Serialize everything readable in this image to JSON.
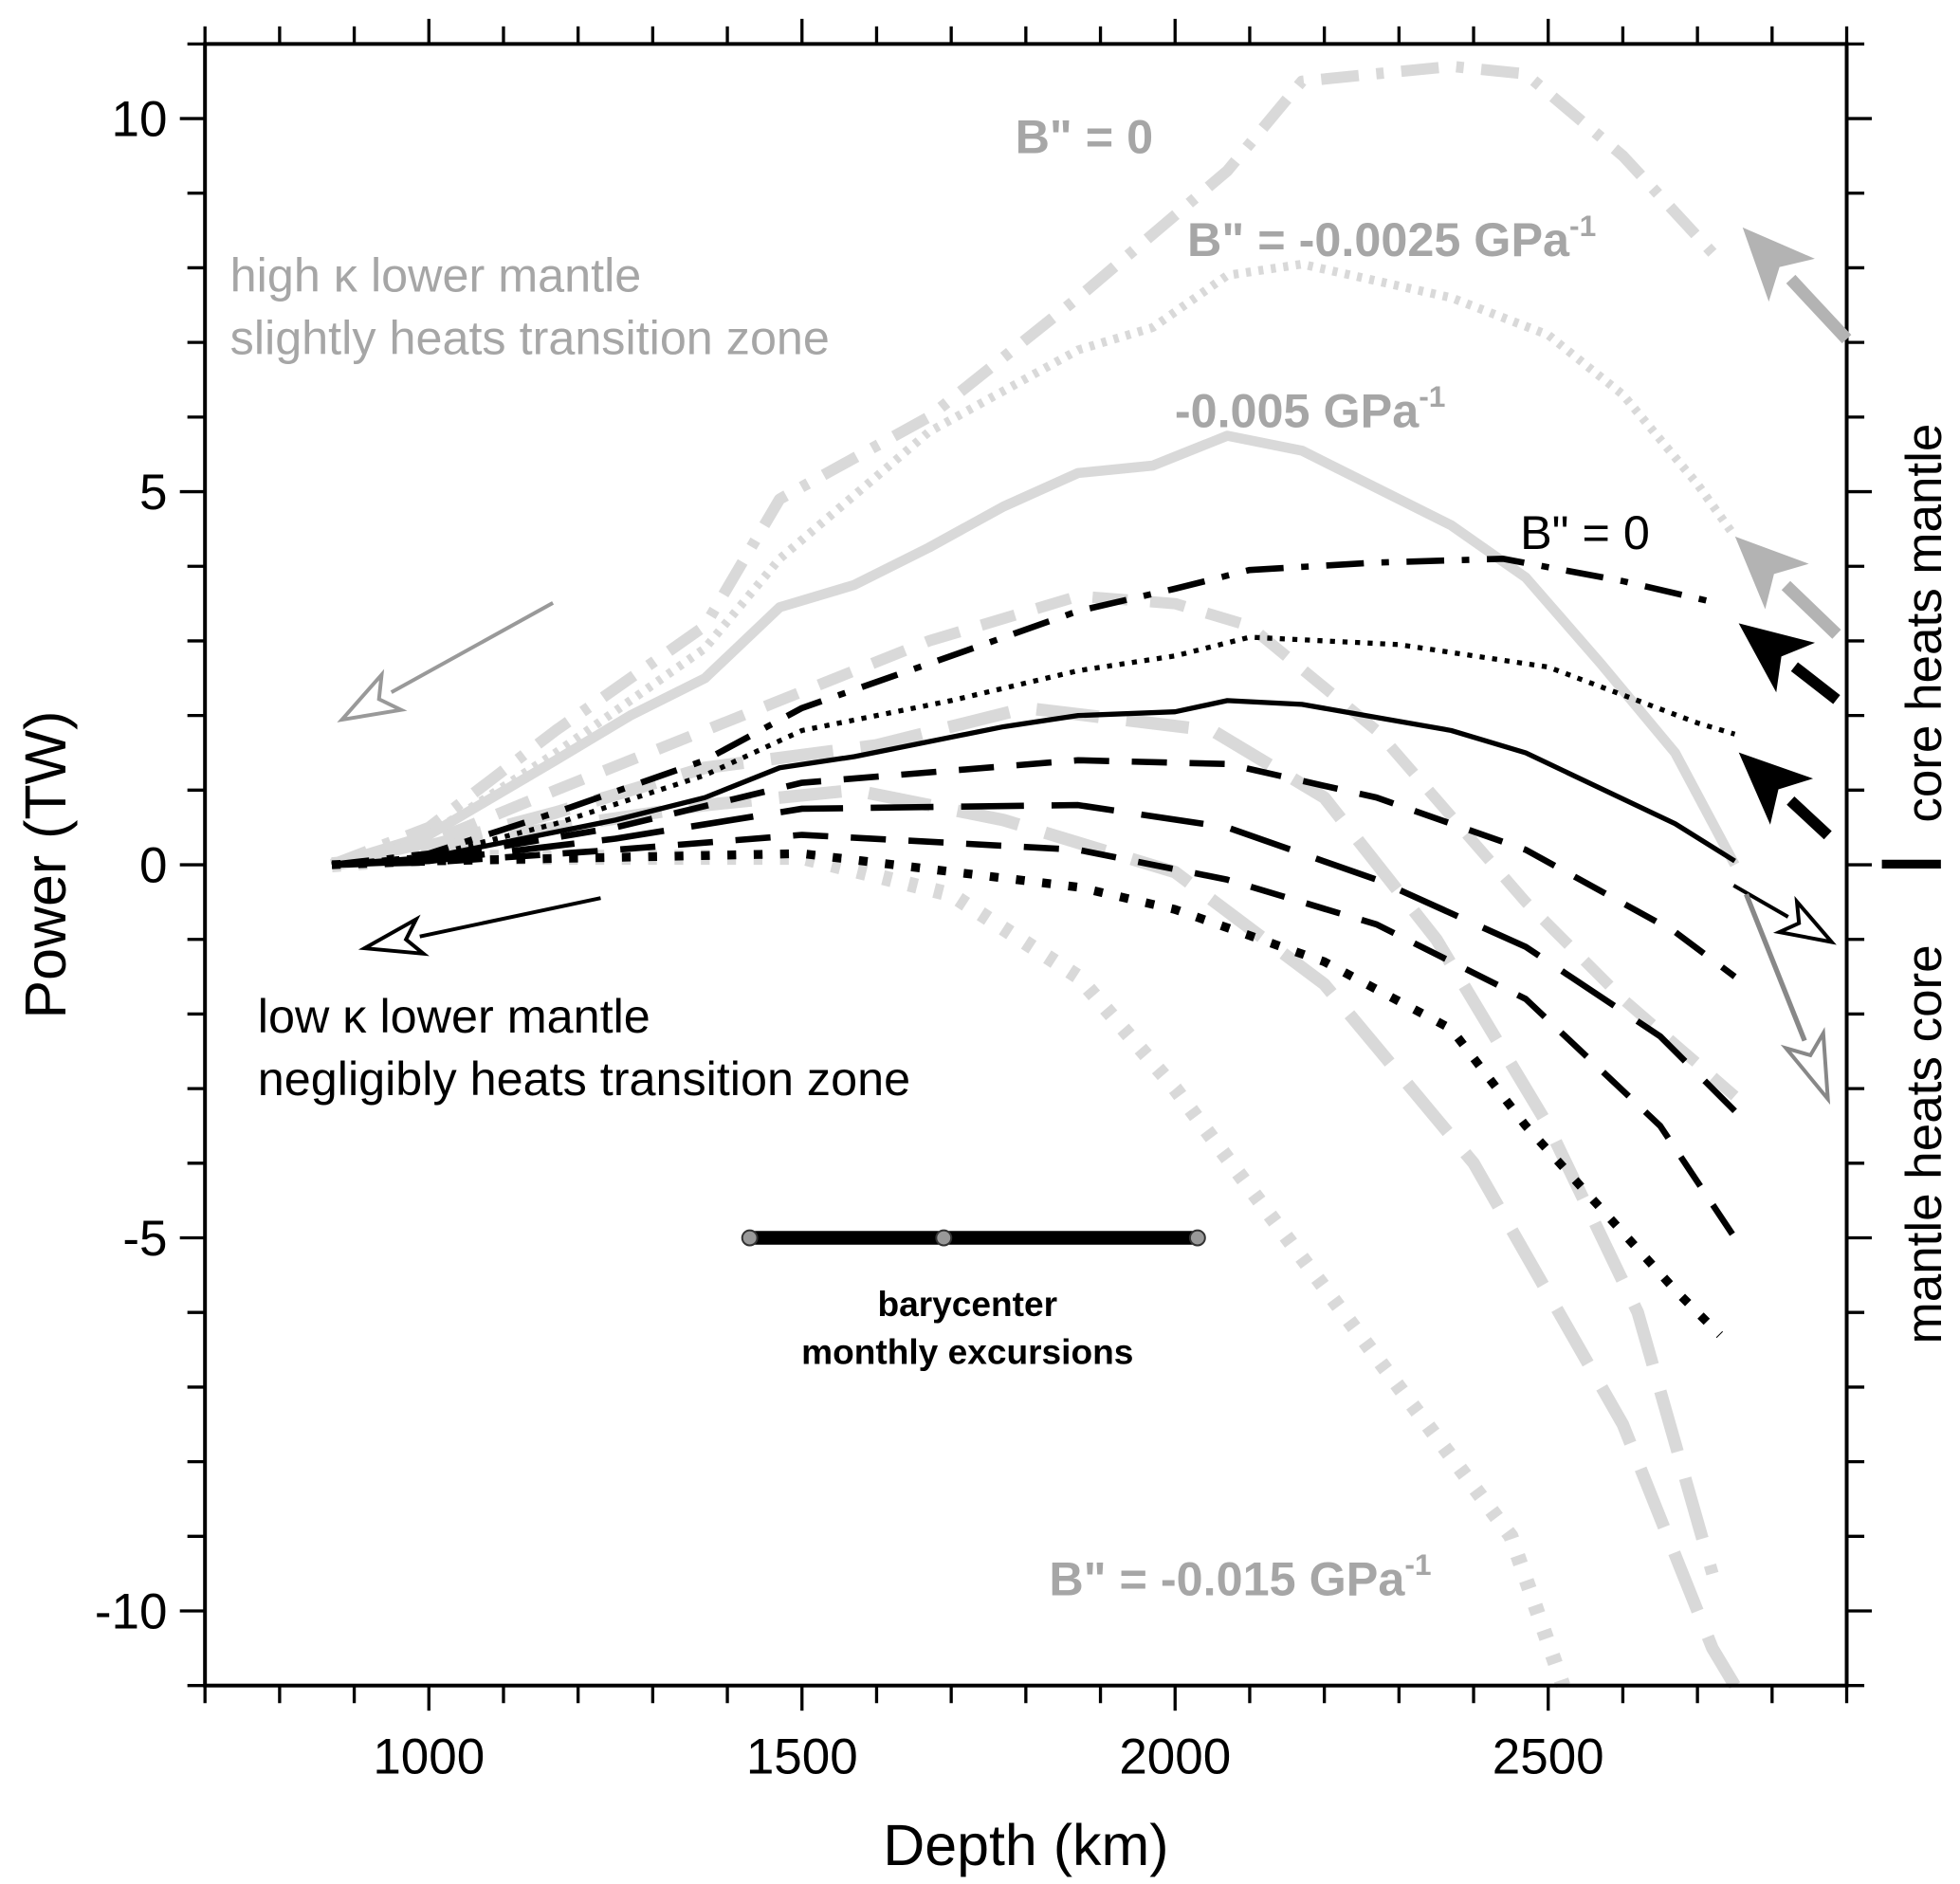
{
  "chart_data": {
    "type": "line",
    "xlabel": "Depth (km)",
    "ylabel": "Power (TW)",
    "xlim": [
      700,
      2900
    ],
    "ylim": [
      -11,
      11
    ],
    "xticks": [
      1000,
      1500,
      2000,
      2500
    ],
    "yticks": [
      10,
      5,
      0,
      -5,
      -10
    ],
    "xtick_labels": [
      "1000",
      "1500",
      "2000",
      "2500"
    ],
    "ytick_labels": [
      "10",
      "5",
      "0",
      "-5",
      "-10"
    ],
    "grid": false,
    "series": [
      {
        "name": "gray B''=0",
        "color": "#d9d9d9",
        "style": "dashdot",
        "x": [
          870,
          1000,
          1170,
          1370,
          1470,
          1670,
          1870,
          2070,
          2170,
          2370,
          2470,
          2600,
          2720
        ],
        "y": [
          0,
          0.5,
          1.8,
          3.2,
          4.9,
          6.0,
          7.6,
          9.3,
          10.5,
          10.7,
          10.6,
          9.5,
          8.2
        ]
      },
      {
        "name": "gray B''=-0.0025",
        "color": "#d9d9d9",
        "style": "dotted",
        "x": [
          870,
          1000,
          1170,
          1370,
          1470,
          1670,
          1870,
          1970,
          2070,
          2170,
          2370,
          2500,
          2600,
          2700,
          2750
        ],
        "y": [
          0,
          0.4,
          1.5,
          2.9,
          4.1,
          5.8,
          6.9,
          7.2,
          7.9,
          8.05,
          7.6,
          7.1,
          6.3,
          5.1,
          4.4
        ]
      },
      {
        "name": "gray B''=-0.005",
        "color": "#d9d9d9",
        "style": "solid",
        "x": [
          870,
          1000,
          1170,
          1270,
          1370,
          1470,
          1570,
          1670,
          1770,
          1870,
          1970,
          2070,
          2170,
          2370,
          2470,
          2570,
          2670,
          2750
        ],
        "y": [
          0,
          0.4,
          1.4,
          2.0,
          2.5,
          3.45,
          3.75,
          4.25,
          4.8,
          5.25,
          5.35,
          5.75,
          5.55,
          4.55,
          3.85,
          2.7,
          1.5,
          0.0
        ]
      },
      {
        "name": "gray B''=-0.0075",
        "color": "#d9d9d9",
        "style": "dashed",
        "x": [
          870,
          1000,
          1170,
          1370,
          1470,
          1670,
          1870,
          2000,
          2100,
          2270,
          2470,
          2600,
          2750
        ],
        "y": [
          0,
          0.3,
          1.0,
          1.8,
          2.2,
          3.0,
          3.6,
          3.5,
          3.2,
          1.8,
          -0.5,
          -1.8,
          -3.1
        ]
      },
      {
        "name": "gray B''=-0.01",
        "color": "#d9d9d9",
        "style": "dashed-long",
        "x": [
          870,
          1000,
          1170,
          1370,
          1600,
          1800,
          2050,
          2200,
          2350,
          2500,
          2620,
          2720
        ],
        "y": [
          0,
          0.25,
          0.7,
          1.3,
          1.6,
          2.1,
          1.8,
          0.9,
          -1.0,
          -3.5,
          -6.0,
          -9.5
        ]
      },
      {
        "name": "gray B''=-0.0125",
        "color": "#d9d9d9",
        "style": "dashed-long",
        "x": [
          870,
          1000,
          1170,
          1370,
          1570,
          1770,
          2000,
          2200,
          2400,
          2600,
          2720,
          2750
        ],
        "y": [
          0,
          0.2,
          0.5,
          0.8,
          1.0,
          0.6,
          -0.1,
          -1.6,
          -4.0,
          -7.5,
          -10.5,
          -11
        ]
      },
      {
        "name": "gray B''=-0.015",
        "color": "#d9d9d9",
        "style": "dotted-heavy",
        "x": [
          870,
          1000,
          1200,
          1500,
          1700,
          1870,
          2000,
          2150,
          2300,
          2450,
          2520
        ],
        "y": [
          0,
          0.1,
          0.1,
          0.1,
          -0.4,
          -1.5,
          -3.0,
          -5.0,
          -7.0,
          -9.0,
          -11
        ]
      },
      {
        "name": "black B''=0",
        "color": "#000000",
        "style": "dashdot",
        "x": [
          870,
          1000,
          1170,
          1370,
          1500,
          1700,
          1870,
          2000,
          2100,
          2270,
          2440,
          2600,
          2730
        ],
        "y": [
          0,
          0.15,
          0.7,
          1.4,
          2.1,
          2.8,
          3.4,
          3.7,
          3.95,
          4.05,
          4.1,
          3.8,
          3.5
        ]
      },
      {
        "name": "black dotted",
        "color": "#000000",
        "style": "dotted",
        "x": [
          870,
          1000,
          1170,
          1370,
          1500,
          1700,
          1870,
          2000,
          2100,
          2300,
          2500,
          2700,
          2750
        ],
        "y": [
          0,
          0.12,
          0.55,
          1.2,
          1.8,
          2.2,
          2.6,
          2.8,
          3.05,
          2.95,
          2.65,
          1.9,
          1.75
        ]
      },
      {
        "name": "black solid",
        "color": "#000000",
        "style": "solid",
        "x": [
          870,
          1000,
          1250,
          1370,
          1470,
          1570,
          1770,
          1870,
          2000,
          2070,
          2170,
          2370,
          2470,
          2670,
          2750
        ],
        "y": [
          0,
          0.1,
          0.6,
          0.9,
          1.3,
          1.45,
          1.85,
          2.0,
          2.05,
          2.2,
          2.15,
          1.8,
          1.5,
          0.55,
          0.05
        ]
      },
      {
        "name": "black dashed",
        "color": "#000000",
        "style": "dashed",
        "x": [
          870,
          1000,
          1250,
          1500,
          1870,
          2070,
          2270,
          2470,
          2670,
          2750
        ],
        "y": [
          0,
          0.08,
          0.5,
          1.1,
          1.4,
          1.35,
          0.9,
          0.2,
          -0.9,
          -1.5
        ]
      },
      {
        "name": "black long dash",
        "color": "#000000",
        "style": "dashed-long",
        "x": [
          870,
          1000,
          1250,
          1500,
          1870,
          2070,
          2270,
          2470,
          2650,
          2750
        ],
        "y": [
          0,
          0.05,
          0.35,
          0.75,
          0.8,
          0.5,
          -0.2,
          -1.1,
          -2.3,
          -3.3
        ]
      },
      {
        "name": "black dashed 2",
        "color": "#000000",
        "style": "dashed",
        "x": [
          870,
          1000,
          1250,
          1500,
          1870,
          2070,
          2270,
          2470,
          2650,
          2750
        ],
        "y": [
          0,
          0.03,
          0.2,
          0.4,
          0.2,
          -0.2,
          -0.8,
          -1.8,
          -3.5,
          -5.0
        ]
      },
      {
        "name": "black dotted heavy",
        "color": "#000000",
        "style": "dotted-heavy",
        "x": [
          870,
          1000,
          1250,
          1500,
          1870,
          2000,
          2200,
          2370,
          2470,
          2570,
          2670,
          2730
        ],
        "y": [
          0,
          0.05,
          0.1,
          0.15,
          -0.3,
          -0.6,
          -1.3,
          -2.2,
          -3.5,
          -4.6,
          -5.7,
          -6.3
        ]
      }
    ],
    "barycenter": {
      "y": -5,
      "x": [
        1430,
        1690,
        2030
      ],
      "label1": "barycenter",
      "label2": "monthly excursions"
    },
    "annotations": {
      "gray_b0": "B\" = 0",
      "gray_b0025": "B\" = -0.0025 GPa",
      "gray_b005": "-0.005 GPa",
      "black_b0": "B\" = 0",
      "gray_b015": "B\" = -0.015 GPa",
      "sup": "-1",
      "high1": "high κ lower mantle",
      "high2": "slightly heats transition zone",
      "low1": "low κ lower mantle",
      "low2": "negligibly heats transition zone",
      "core_heats_mantle": "core heats mantle",
      "mantle_heats_core": "mantle heats core"
    }
  }
}
